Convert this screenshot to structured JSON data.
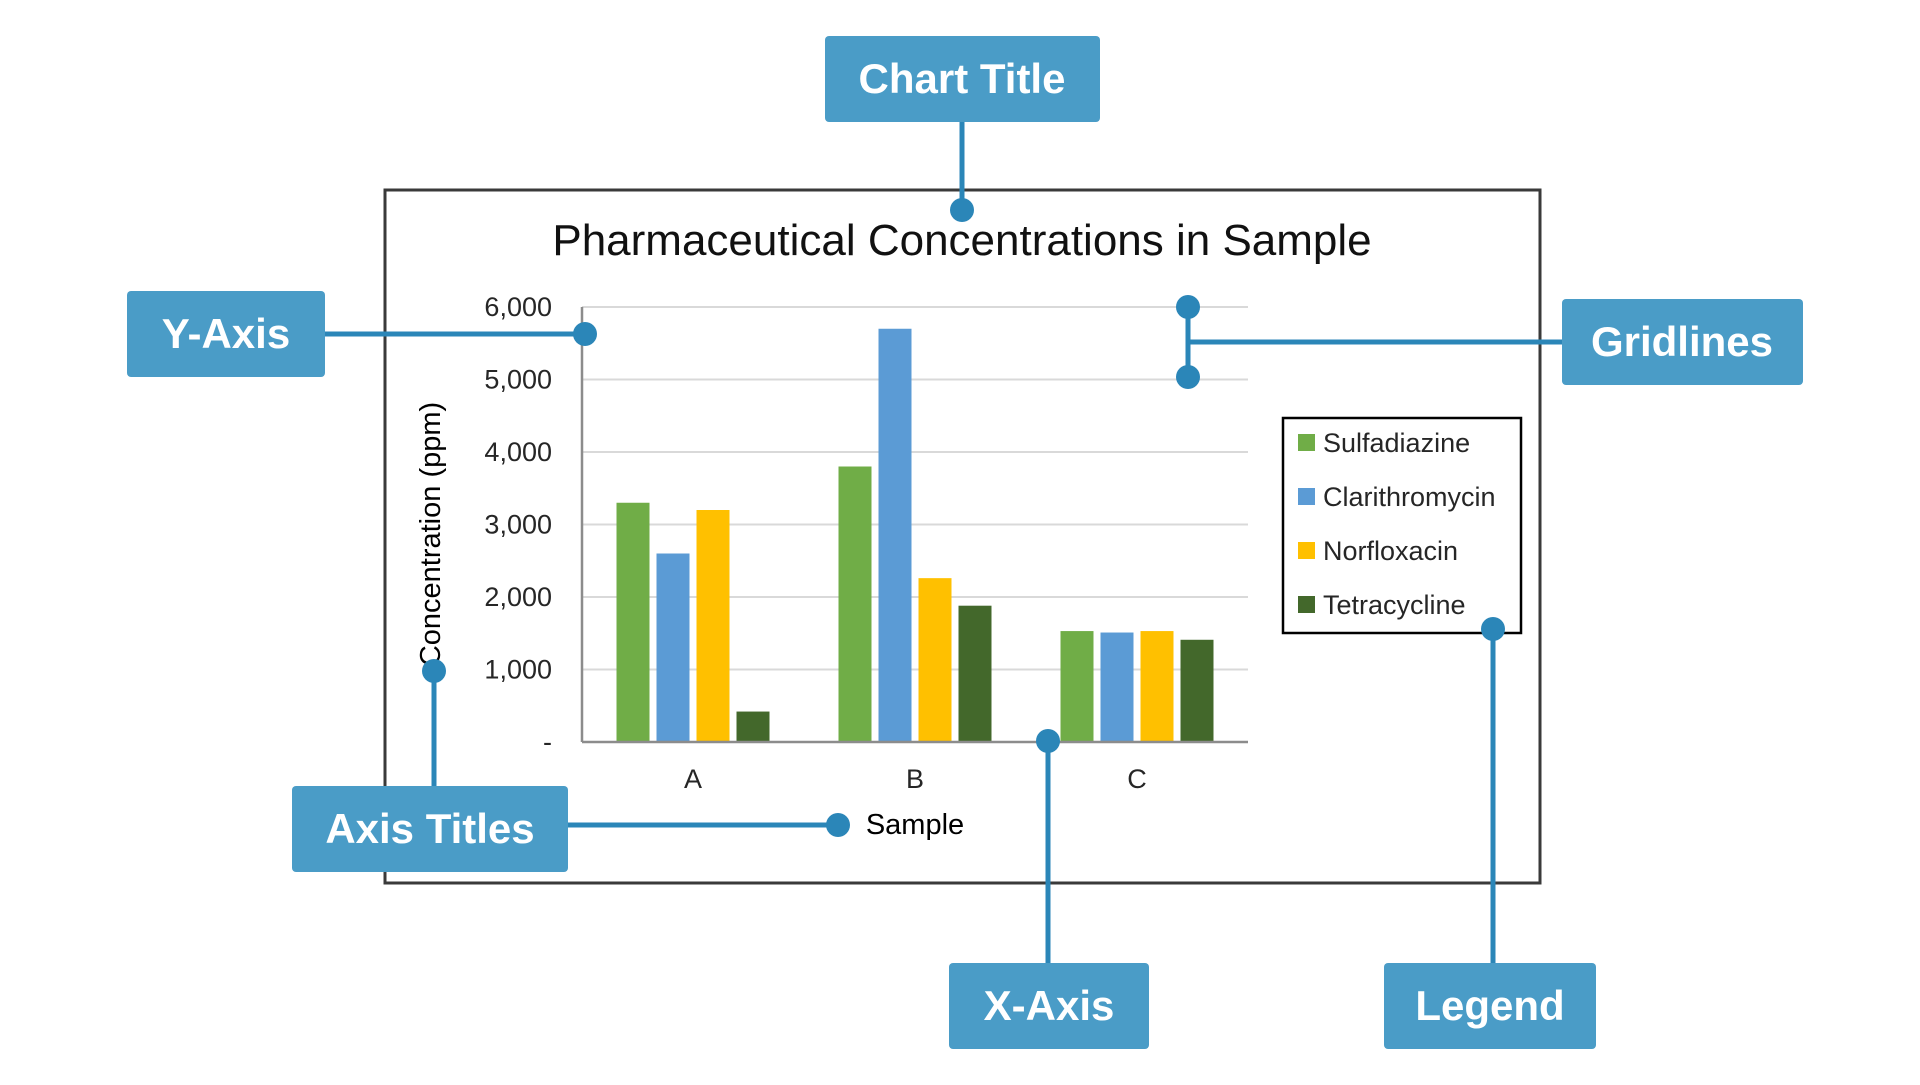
{
  "callouts": {
    "chart_title": "Chart Title",
    "y_axis": "Y-Axis",
    "gridlines": "Gridlines",
    "axis_titles": "Axis Titles",
    "x_axis": "X-Axis",
    "legend": "Legend"
  },
  "colors": {
    "callout": "#4a9cc7",
    "connector": "#2b86b8",
    "sulfadiazine": "#70ad47",
    "clarithromycin": "#5b9bd5",
    "norfloxacin": "#ffc000",
    "tetracycline": "#43682b"
  },
  "chart_data": {
    "type": "bar",
    "title": "Pharmaceutical Concentrations in Sample",
    "xlabel": "Sample",
    "ylabel": "Concentration (ppm)",
    "categories": [
      "A",
      "B",
      "C"
    ],
    "ylim": [
      0,
      6000
    ],
    "yticks": [
      0,
      1000,
      2000,
      3000,
      4000,
      5000,
      6000
    ],
    "ytick_labels": [
      "-",
      "1,000",
      "2,000",
      "3,000",
      "4,000",
      "5,000",
      "6,000"
    ],
    "grid": true,
    "legend_position": "right",
    "series": [
      {
        "name": "Sulfadiazine",
        "values": [
          3300,
          3800,
          1530
        ],
        "color": "#70ad47"
      },
      {
        "name": "Clarithromycin",
        "values": [
          2600,
          5700,
          1510
        ],
        "color": "#5b9bd5"
      },
      {
        "name": "Norfloxacin",
        "values": [
          3200,
          2260,
          1530
        ],
        "color": "#ffc000"
      },
      {
        "name": "Tetracycline",
        "values": [
          420,
          1880,
          1410
        ],
        "color": "#43682b"
      }
    ]
  }
}
